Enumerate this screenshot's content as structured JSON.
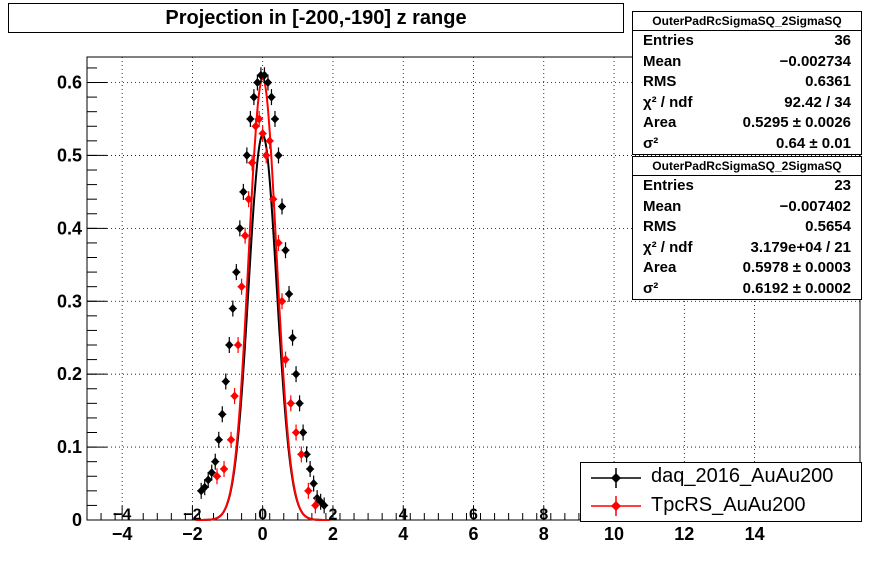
{
  "title": "Projection in [-200,-190] z range",
  "stats": [
    {
      "name": "OuterPadRcSigmaSQ_2SigmaSQ",
      "rows": [
        {
          "label": "Entries",
          "value": "36"
        },
        {
          "label": "Mean",
          "value": "−0.002734"
        },
        {
          "label": "RMS",
          "value": "0.6361"
        },
        {
          "label": "χ² / ndf",
          "value": "92.42 / 34"
        },
        {
          "label": "Area",
          "value": "0.5295 ± 0.0026"
        },
        {
          "label": "σ²",
          "value": "0.64 ± 0.01"
        }
      ]
    },
    {
      "name": "OuterPadRcSigmaSQ_2SigmaSQ",
      "rows": [
        {
          "label": "Entries",
          "value": "23"
        },
        {
          "label": "Mean",
          "value": "−0.007402"
        },
        {
          "label": "RMS",
          "value": "0.5654"
        },
        {
          "label": "χ² / ndf",
          "value": "3.179e+04 / 21"
        },
        {
          "label": "Area",
          "value": "0.5978 ± 0.0003"
        },
        {
          "label": "σ²",
          "value": "0.6192 ± 0.0002"
        }
      ]
    }
  ],
  "legend": [
    {
      "label": "daq_2016_AuAu200",
      "color": "#000000"
    },
    {
      "label": "TpcRS_AuAu200",
      "color": "#ff0000"
    }
  ],
  "chart_data": {
    "type": "scatter",
    "title": "Projection in [-200,-190] z range",
    "xlim": [
      -5,
      17
    ],
    "ylim": [
      0,
      0.635
    ],
    "xticks": [
      "−4",
      "−2",
      "0",
      "2",
      "4",
      "6",
      "8",
      "10",
      "12",
      "14"
    ],
    "xtick_values": [
      -4,
      -2,
      0,
      2,
      4,
      6,
      8,
      10,
      12,
      14
    ],
    "yticks": [
      "0",
      "0.1",
      "0.2",
      "0.3",
      "0.4",
      "0.5",
      "0.6"
    ],
    "ytick_values": [
      0,
      0.1,
      0.2,
      0.3,
      0.4,
      0.5,
      0.6
    ],
    "grid": true,
    "legend_position": "bottom-right",
    "series": [
      {
        "name": "daq_2016_AuAu200",
        "color": "#000000",
        "fit": {
          "area": 0.5295,
          "sigma2": 0.64
        },
        "points": [
          [
            -1.75,
            0.04
          ],
          [
            -1.65,
            0.045
          ],
          [
            -1.55,
            0.055
          ],
          [
            -1.45,
            0.065
          ],
          [
            -1.35,
            0.08
          ],
          [
            -1.25,
            0.11
          ],
          [
            -1.15,
            0.145
          ],
          [
            -1.05,
            0.19
          ],
          [
            -0.95,
            0.24
          ],
          [
            -0.85,
            0.29
          ],
          [
            -0.75,
            0.34
          ],
          [
            -0.65,
            0.4
          ],
          [
            -0.55,
            0.45
          ],
          [
            -0.45,
            0.5
          ],
          [
            -0.35,
            0.55
          ],
          [
            -0.25,
            0.58
          ],
          [
            -0.15,
            0.6
          ],
          [
            -0.05,
            0.61
          ],
          [
            0.05,
            0.61
          ],
          [
            0.15,
            0.6
          ],
          [
            0.25,
            0.58
          ],
          [
            0.35,
            0.55
          ],
          [
            0.45,
            0.5
          ],
          [
            0.55,
            0.43
          ],
          [
            0.65,
            0.37
          ],
          [
            0.75,
            0.31
          ],
          [
            0.85,
            0.25
          ],
          [
            0.95,
            0.2
          ],
          [
            1.05,
            0.16
          ],
          [
            1.15,
            0.12
          ],
          [
            1.25,
            0.09
          ],
          [
            1.35,
            0.07
          ],
          [
            1.45,
            0.05
          ],
          [
            1.55,
            0.03
          ],
          [
            1.65,
            0.025
          ],
          [
            1.75,
            0.02
          ]
        ]
      },
      {
        "name": "TpcRS_AuAu200",
        "color": "#ff0000",
        "fit": {
          "area": 0.5978,
          "sigma2": 0.6192
        },
        "points": [
          [
            -1.3,
            0.06
          ],
          [
            -1.1,
            0.07
          ],
          [
            -0.9,
            0.11
          ],
          [
            -0.8,
            0.17
          ],
          [
            -0.7,
            0.24
          ],
          [
            -0.6,
            0.32
          ],
          [
            -0.5,
            0.39
          ],
          [
            -0.4,
            0.44
          ],
          [
            -0.3,
            0.49
          ],
          [
            -0.2,
            0.54
          ],
          [
            -0.1,
            0.55
          ],
          [
            0.0,
            0.53
          ],
          [
            0.1,
            0.5
          ],
          [
            0.2,
            0.52
          ],
          [
            0.3,
            0.44
          ],
          [
            0.45,
            0.38
          ],
          [
            0.55,
            0.3
          ],
          [
            0.65,
            0.22
          ],
          [
            0.8,
            0.16
          ],
          [
            0.95,
            0.12
          ],
          [
            1.1,
            0.09
          ],
          [
            1.3,
            0.04
          ],
          [
            1.5,
            0.02
          ]
        ]
      }
    ]
  }
}
